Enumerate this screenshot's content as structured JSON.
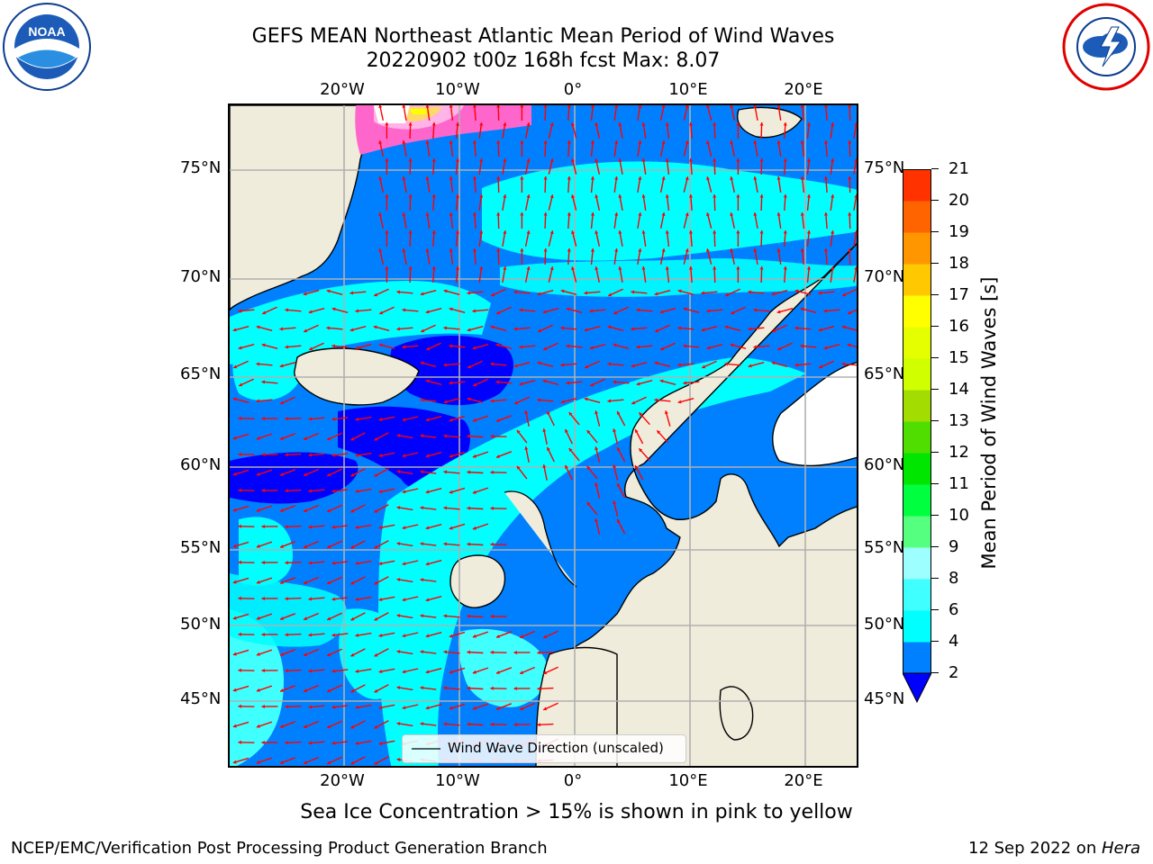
{
  "header": {
    "title_line1": "GEFS MEAN Northeast Atlantic Mean Period of Wind Waves",
    "title_line2": "20220902 t00z 168h fcst   Max: 8.07"
  },
  "logos": {
    "left": {
      "text": "NOAA",
      "ring_text": "NATIONAL OCEANIC AND ATMOSPHERIC ADMINISTRATION · U.S. DEPARTMENT OF COMMERCE",
      "color": "#0a3d8f"
    },
    "right": {
      "ring_text": "NATIONAL WEATHER SERVICE",
      "color": "#e00000"
    }
  },
  "map": {
    "lon_ticks": [
      "20°W",
      "10°W",
      "0°",
      "10°E",
      "20°E"
    ],
    "lat_ticks": [
      "75°N",
      "70°N",
      "65°N",
      "60°N",
      "55°N",
      "50°N",
      "45°N"
    ],
    "legend_label": "Wind Wave Direction (unscaled)",
    "colors": {
      "ocean_2_4": "#0080ff",
      "ocean_4_6": "#00ffff",
      "ocean_6_8": "#40ffff",
      "ocean_lt2": "#0000ff",
      "land": "#efecdc",
      "arrow": "#ff0000",
      "grid": "#b0b0b0"
    },
    "sea_ice": true
  },
  "colorbar": {
    "label": "Mean Period of Wind Waves [s]",
    "ticks": [
      "2",
      "4",
      "6",
      "8",
      "9",
      "10",
      "11",
      "12",
      "13",
      "14",
      "15",
      "16",
      "17",
      "18",
      "19",
      "20",
      "21"
    ],
    "colors": [
      "#0080ff",
      "#00ffff",
      "#40ffff",
      "#9dffff",
      "#55ff7f",
      "#00ff3f",
      "#00e600",
      "#4fde00",
      "#a3dc00",
      "#d0ff00",
      "#e6ff00",
      "#ffff00",
      "#ffc800",
      "#ff9600",
      "#ff6400",
      "#ff3200",
      "#ff0000"
    ],
    "extend_color": "#0000ff"
  },
  "note": "Sea Ice Concentration > 15% is shown in pink to yellow",
  "footer": {
    "left": "NCEP/EMC/Verification Post Processing Product Generation Branch",
    "right_prefix": "12 Sep 2022 on ",
    "right_host": "Hera"
  }
}
